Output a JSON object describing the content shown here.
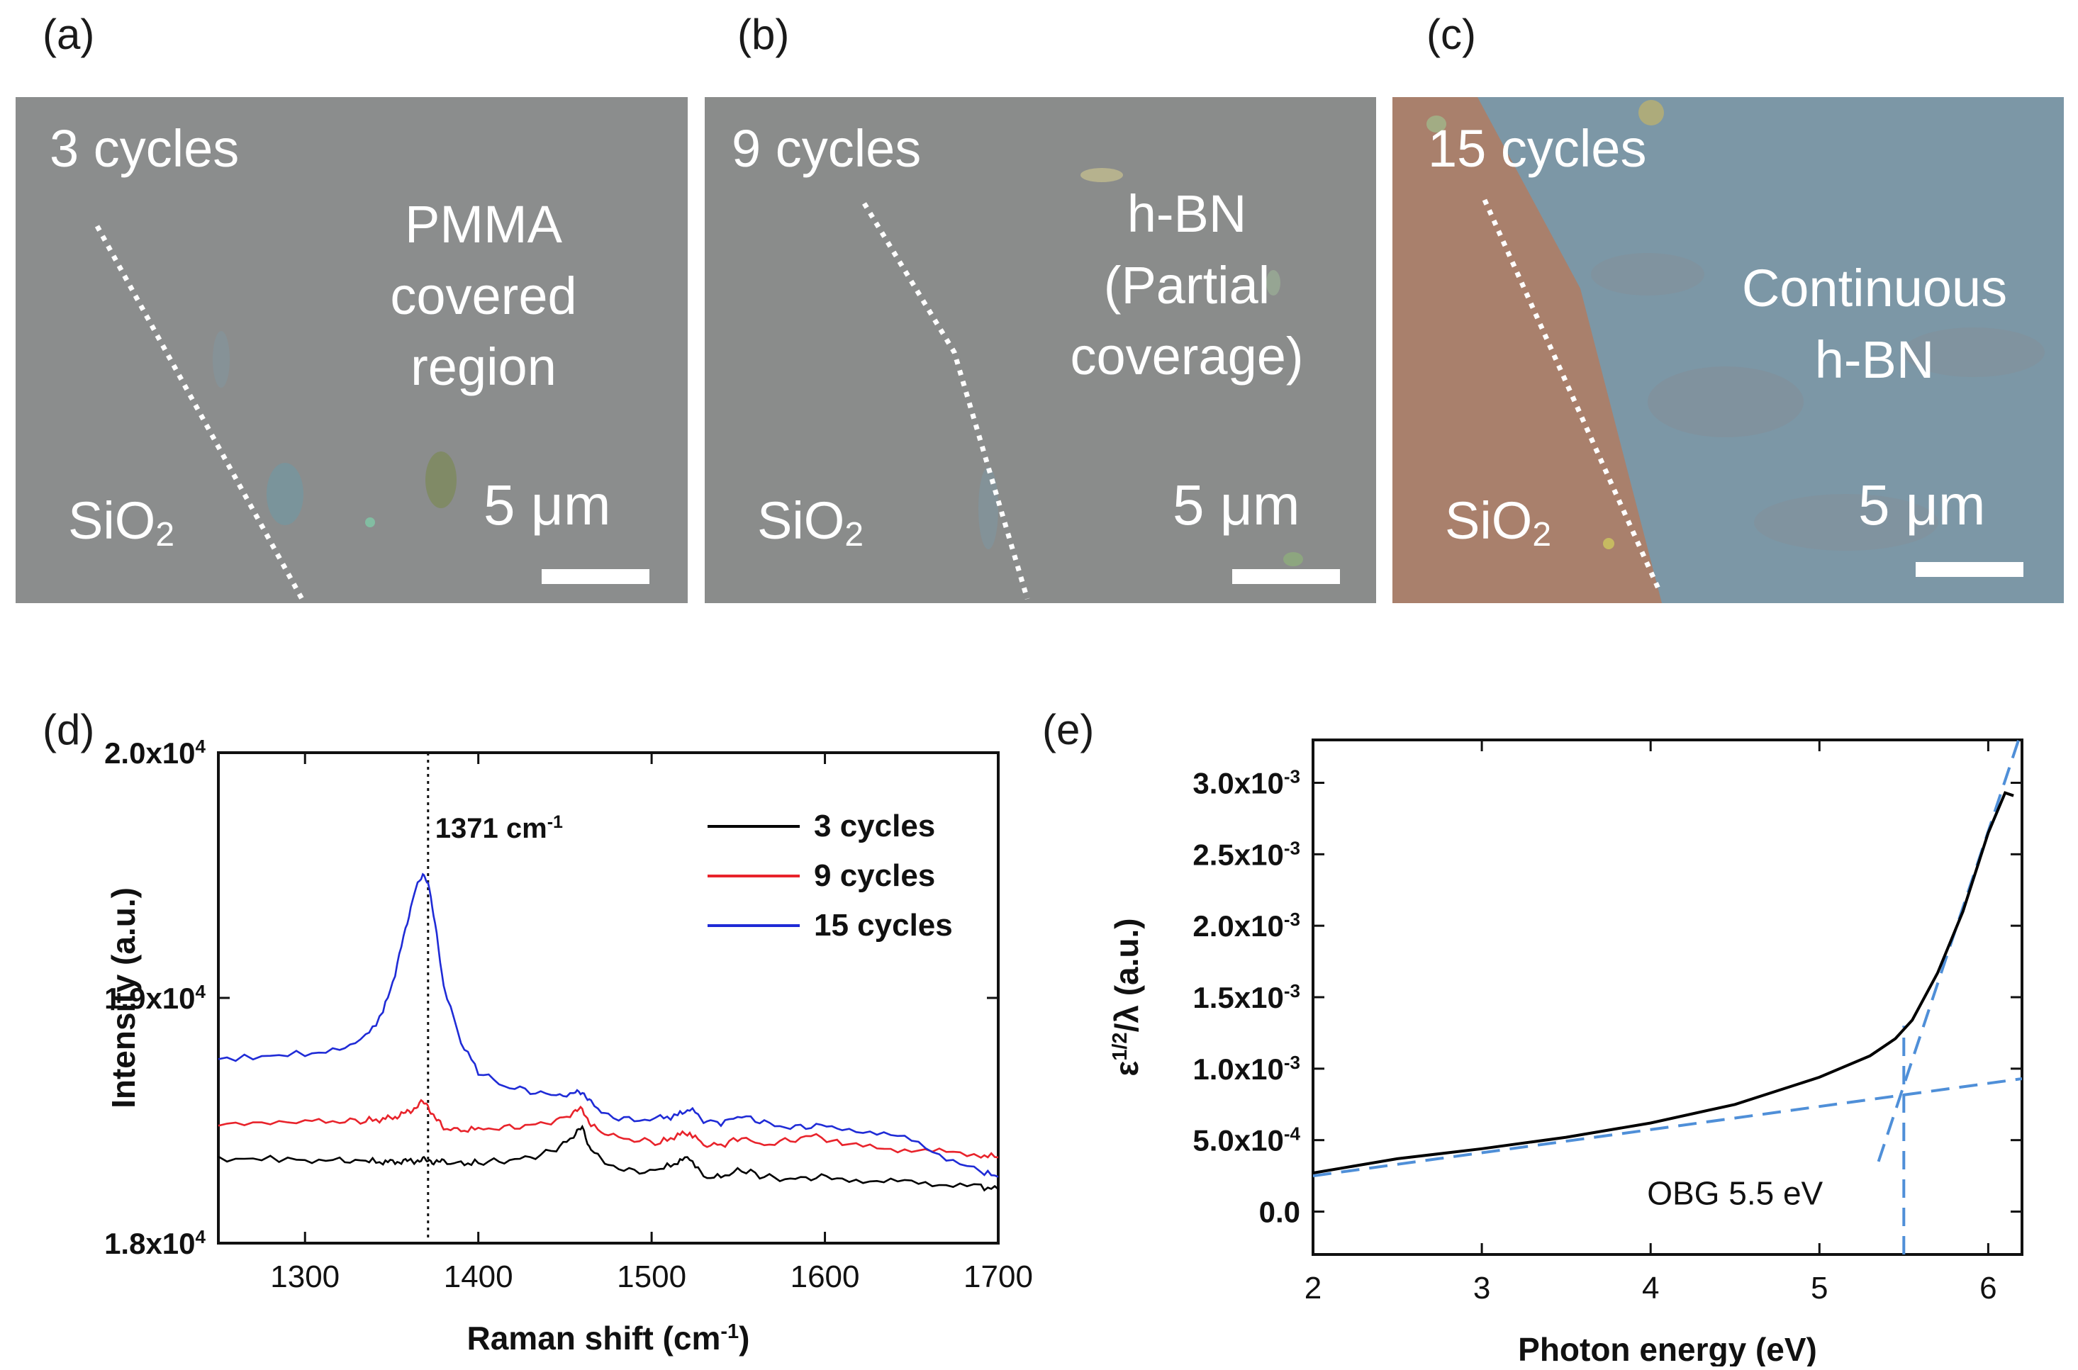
{
  "panels": {
    "a": {
      "label": "(a)",
      "cycles": "3 cycles",
      "region_lines": [
        "PMMA",
        "covered",
        "region"
      ],
      "sio2": "SiO",
      "sio2_sub": "2",
      "scale": "5 μm"
    },
    "b": {
      "label": "(b)",
      "cycles": "9 cycles",
      "region_lines": [
        "h-BN",
        "(Partial",
        "coverage)"
      ],
      "sio2": "SiO",
      "sio2_sub": "2",
      "scale": "5 μm"
    },
    "c": {
      "label": "(c)",
      "cycles": "15 cycles",
      "region_lines": [
        "Continuous",
        "h-BN"
      ],
      "sio2": "SiO",
      "sio2_sub": "2",
      "scale": "5 μm"
    },
    "d": {
      "label": "(d)"
    },
    "e": {
      "label": "(e)"
    }
  },
  "colors": {
    "film_gray": "#8a8c8c",
    "sio2_copper": "#a9806c",
    "hbn_blue": "#7c97a6",
    "series_3": "#000000",
    "series_9": "#e8232b",
    "series_15": "#1f2bd6",
    "fit_dash": "#4f8fd8"
  },
  "chart_data": [
    {
      "type": "line",
      "panel": "d",
      "title": "",
      "xlabel": "Raman shift (cm",
      "xlabel_sup": "-1",
      "xlabel_end": ")",
      "ylabel": "Intensity (a.u.)",
      "xlim": [
        1250,
        1700
      ],
      "ylim": [
        18000,
        20000
      ],
      "x_ticks": [
        "1300",
        "1400",
        "1500",
        "1600",
        "1700"
      ],
      "x_tick_values": [
        1300,
        1400,
        1500,
        1600,
        1700
      ],
      "y_ticks": [
        {
          "value": 18000,
          "mant": "1.8x10",
          "exp": "4"
        },
        {
          "value": 19000,
          "mant": "1.9x10",
          "exp": "4"
        },
        {
          "value": 20000,
          "mant": "2.0x10",
          "exp": "4"
        }
      ],
      "peak_line_x": 1371,
      "peak_label": "1371",
      "peak_unit": "cm",
      "peak_unit_sup": "-1",
      "legend_position": "top-right",
      "x": [
        1250,
        1275,
        1300,
        1320,
        1335,
        1345,
        1352,
        1358,
        1363,
        1368,
        1371,
        1375,
        1380,
        1390,
        1400,
        1415,
        1430,
        1445,
        1455,
        1460,
        1465,
        1475,
        1490,
        1505,
        1515,
        1522,
        1530,
        1540,
        1552,
        1565,
        1580,
        1595,
        1610,
        1630,
        1650,
        1670,
        1690,
        1700
      ],
      "series": [
        {
          "name": "3 cycles",
          "color": "#000000",
          "values": [
            18340,
            18345,
            18340,
            18338,
            18335,
            18330,
            18332,
            18334,
            18336,
            18338,
            18336,
            18334,
            18330,
            18325,
            18328,
            18335,
            18350,
            18380,
            18440,
            18470,
            18380,
            18320,
            18290,
            18300,
            18330,
            18350,
            18270,
            18270,
            18300,
            18270,
            18260,
            18270,
            18265,
            18250,
            18250,
            18240,
            18230,
            18220
          ]
        },
        {
          "name": "9 cycles",
          "color": "#e8232b",
          "values": [
            18485,
            18490,
            18495,
            18495,
            18500,
            18505,
            18515,
            18530,
            18550,
            18575,
            18560,
            18510,
            18470,
            18460,
            18465,
            18470,
            18480,
            18500,
            18530,
            18550,
            18480,
            18440,
            18420,
            18410,
            18440,
            18450,
            18400,
            18400,
            18430,
            18400,
            18420,
            18440,
            18400,
            18390,
            18380,
            18370,
            18360,
            18350
          ]
        },
        {
          "name": "15 cycles",
          "color": "#1f2bd6",
          "values": [
            18750,
            18760,
            18775,
            18790,
            18840,
            18940,
            19100,
            19280,
            19430,
            19500,
            19480,
            19300,
            19050,
            18820,
            18700,
            18640,
            18620,
            18600,
            18610,
            18620,
            18570,
            18520,
            18500,
            18510,
            18520,
            18550,
            18500,
            18490,
            18520,
            18490,
            18470,
            18480,
            18470,
            18450,
            18420,
            18350,
            18290,
            18270
          ]
        }
      ]
    },
    {
      "type": "line",
      "panel": "e",
      "title": "",
      "xlabel": "Photon energy (eV)",
      "ylabel_pre": "ε",
      "ylabel_sup": "1/2",
      "ylabel_post": "/λ (a.u.)",
      "xlim": [
        2,
        6.2
      ],
      "ylim": [
        -0.0003,
        0.0033
      ],
      "x_ticks": [
        "2",
        "3",
        "4",
        "5",
        "6"
      ],
      "x_tick_values": [
        2,
        3,
        4,
        5,
        6
      ],
      "y_ticks": [
        {
          "value": 0.0,
          "mant": "0.0",
          "exp": ""
        },
        {
          "value": 0.0005,
          "mant": "5.0x10",
          "exp": "-4"
        },
        {
          "value": 0.001,
          "mant": "1.0x10",
          "exp": "-3"
        },
        {
          "value": 0.0015,
          "mant": "1.5x10",
          "exp": "-3"
        },
        {
          "value": 0.002,
          "mant": "2.0x10",
          "exp": "-3"
        },
        {
          "value": 0.0025,
          "mant": "2.5x10",
          "exp": "-3"
        },
        {
          "value": 0.003,
          "mant": "3.0x10",
          "exp": "-3"
        }
      ],
      "annotation": "OBG 5.5 eV",
      "band_gap_eV": 5.5,
      "x": [
        2.0,
        2.5,
        3.0,
        3.5,
        4.0,
        4.5,
        5.0,
        5.3,
        5.45,
        5.55,
        5.7,
        5.85,
        6.0,
        6.1,
        6.15
      ],
      "series": [
        {
          "name": "measured",
          "color": "#000000",
          "values": [
            0.00027,
            0.00037,
            0.00044,
            0.00052,
            0.00062,
            0.00075,
            0.00094,
            0.00109,
            0.00121,
            0.00134,
            0.00167,
            0.0021,
            0.00265,
            0.00293,
            0.00291
          ]
        }
      ],
      "fits": [
        {
          "name": "baseline-fit",
          "x": [
            2.0,
            6.2
          ],
          "values": [
            0.00025,
            0.00093
          ]
        },
        {
          "name": "edge-fit",
          "x": [
            5.35,
            6.18
          ],
          "values": [
            0.00035,
            0.0033
          ]
        },
        {
          "name": "gap-marker",
          "x": [
            5.5,
            5.5
          ],
          "values": [
            -0.0003,
            0.0013
          ]
        }
      ]
    }
  ]
}
